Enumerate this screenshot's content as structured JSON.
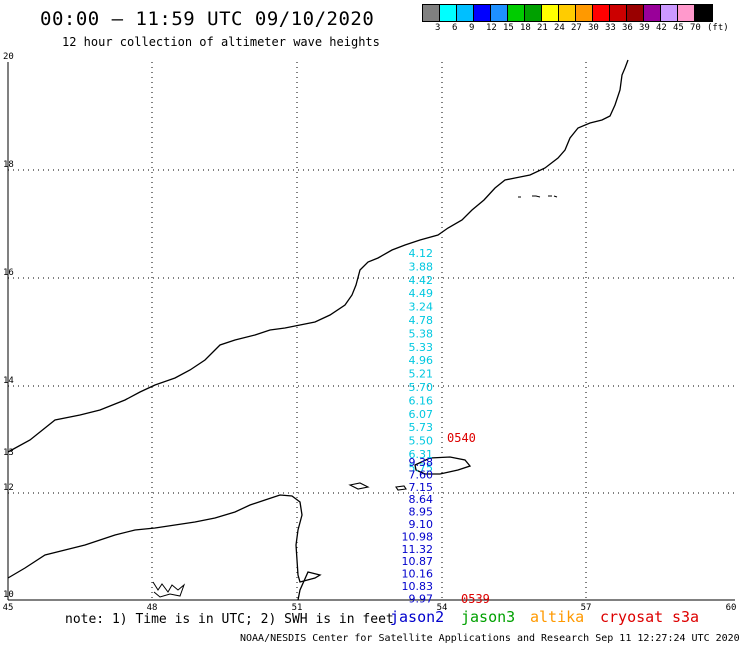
{
  "header": {
    "title": "00:00 – 11:59 UTC 09/10/2020",
    "subtitle": "12 hour collection of altimeter wave heights"
  },
  "legend": {
    "colors": [
      "#808080",
      "#00ffff",
      "#00bfff",
      "#0000ff",
      "#1e90ff",
      "#00cc00",
      "#00a000",
      "#ffff00",
      "#ffcc00",
      "#ff9900",
      "#ff0000",
      "#cc0000",
      "#990000",
      "#990099",
      "#cc99ff",
      "#ff99cc",
      "#000000"
    ],
    "labels": [
      "3",
      "6",
      "9",
      "12",
      "15",
      "18",
      "21",
      "24",
      "27",
      "30",
      "33",
      "36",
      "39",
      "42",
      "45",
      "70",
      "(ft)"
    ]
  },
  "axes": {
    "x_ticks": [
      "45",
      "48",
      "51",
      "54",
      "57",
      "60"
    ],
    "y_ticks": [
      "20",
      "18",
      "16",
      "14",
      "12",
      "10"
    ],
    "y_extra": "13"
  },
  "tracks": {
    "cyan": [
      "4.12",
      "3.88",
      "4.42",
      "4.49",
      "3.24",
      "4.78",
      "5.38",
      "5.33",
      "4.96",
      "5.21",
      "5.70",
      "6.16",
      "6.07",
      "5.73",
      "5.50",
      "6.31",
      "5.75"
    ],
    "blue": [
      "9.38",
      "7.60",
      "7.15",
      "8.64",
      "8.95",
      "9.10",
      "10.98",
      "11.32",
      "10.87",
      "10.16",
      "10.83",
      "9.97"
    ],
    "time_top": "0540",
    "time_bottom": "0539"
  },
  "footer": {
    "note": "note: 1) Time is in UTC; 2) SWH is in feet",
    "satellites": [
      {
        "name": "jason2",
        "color": "#0000cc"
      },
      {
        "name": "jason3",
        "color": "#00a000"
      },
      {
        "name": "altika",
        "color": "#ff9900"
      },
      {
        "name": "cryosat",
        "color": "#dd0000"
      },
      {
        "name": "s3a",
        "color": "#dd0000"
      }
    ],
    "credit": "NOAA/NESDIS Center for Satellite Applications and Research   Sep 11 12:27:24 UTC 2020"
  }
}
